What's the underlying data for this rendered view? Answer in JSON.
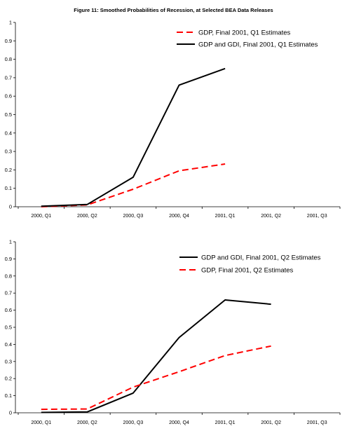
{
  "title": "Figure 11: Smoothed Probabilities of Recession, at Selected BEA Data Releases",
  "chart_data": [
    {
      "type": "line",
      "categories": [
        "2000, Q1",
        "2000, Q2",
        "2000, Q3",
        "2000, Q4",
        "2001, Q1",
        "2001, Q2",
        "2001, Q3"
      ],
      "ylim": [
        0,
        1
      ],
      "yticks": [
        "0",
        "0.1",
        "0.2",
        "0.3",
        "0.4",
        "0.5",
        "0.6",
        "0.7",
        "0.8",
        "0.9",
        "1"
      ],
      "grid": false,
      "legend_position": "top-right",
      "series": [
        {
          "name": "GDP, Final 2001, Q1 Estimates",
          "color": "#ff0000",
          "style": "dashed",
          "values": [
            0.0,
            0.01,
            0.095,
            0.195,
            0.232,
            null,
            null
          ]
        },
        {
          "name": "GDP and GDI, Final 2001, Q1 Estimates",
          "color": "#000000",
          "style": "solid",
          "values": [
            0.003,
            0.012,
            0.16,
            0.66,
            0.75,
            null,
            null
          ]
        }
      ]
    },
    {
      "type": "line",
      "categories": [
        "2000, Q1",
        "2000, Q2",
        "2000, Q3",
        "2000, Q4",
        "2001, Q1",
        "2001, Q2",
        "2001, Q3"
      ],
      "ylim": [
        0,
        1
      ],
      "yticks": [
        "0",
        "0.1",
        "0.2",
        "0.3",
        "0.4",
        "0.5",
        "0.6",
        "0.7",
        "0.8",
        "0.9",
        "1"
      ],
      "grid": false,
      "legend_position": "top-right",
      "series": [
        {
          "name": "GDP and GDI, Final 2001, Q2 Estimates",
          "color": "#000000",
          "style": "solid",
          "values": [
            0.002,
            0.005,
            0.115,
            0.44,
            0.66,
            0.635,
            null
          ]
        },
        {
          "name": "GDP, Final 2001, Q2 Estimates",
          "color": "#ff0000",
          "style": "dashed",
          "values": [
            0.02,
            0.022,
            0.15,
            0.24,
            0.335,
            0.39,
            null
          ]
        }
      ]
    }
  ]
}
